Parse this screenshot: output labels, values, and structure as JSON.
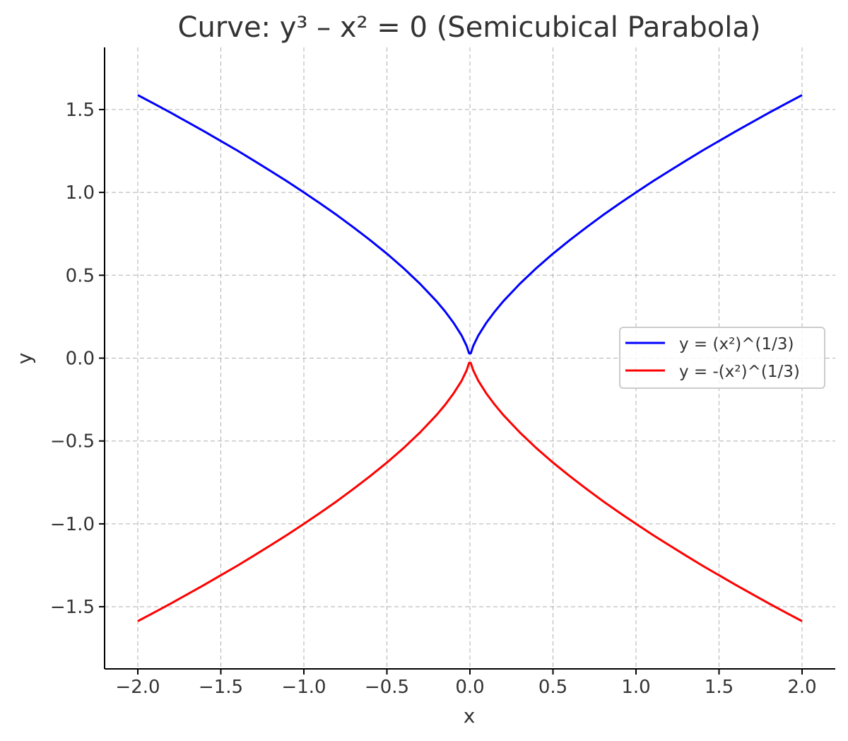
{
  "chart_data": {
    "type": "line",
    "title": "Curve: y³ – x² = 0 (Semicubical Parabola)",
    "xlabel": "x",
    "ylabel": "y",
    "xlim": [
      -2.2,
      2.2
    ],
    "ylim": [
      -1.875,
      1.875
    ],
    "xticks": [
      -2.0,
      -1.5,
      -1.0,
      -0.5,
      0.0,
      0.5,
      1.0,
      1.5,
      2.0
    ],
    "xtick_labels": [
      "−2.0",
      "−1.5",
      "−1.0",
      "−0.5",
      "0.0",
      "0.5",
      "1.0",
      "1.5",
      "2.0"
    ],
    "yticks": [
      -1.5,
      -1.0,
      -0.5,
      0.0,
      0.5,
      1.0,
      1.5
    ],
    "ytick_labels": [
      "−1.5",
      "−1.0",
      "−0.5",
      "0.0",
      "0.5",
      "1.0",
      "1.5"
    ],
    "grid": true,
    "legend_placement": "center-right",
    "x": [
      -2.0,
      -1.9,
      -1.8,
      -1.7,
      -1.6,
      -1.5,
      -1.4,
      -1.3,
      -1.2,
      -1.1,
      -1.0,
      -0.9,
      -0.8,
      -0.7,
      -0.6,
      -0.5,
      -0.4,
      -0.3,
      -0.2,
      -0.15,
      -0.1,
      -0.05,
      -0.02,
      -0.005,
      0.005,
      0.02,
      0.05,
      0.1,
      0.15,
      0.2,
      0.3,
      0.4,
      0.5,
      0.6,
      0.7,
      0.8,
      0.9,
      1.0,
      1.1,
      1.2,
      1.3,
      1.4,
      1.5,
      1.6,
      1.7,
      1.8,
      1.9,
      2.0
    ],
    "series": [
      {
        "name": "y = (x²)^(1/3)",
        "color": "#0000ff",
        "values": [
          1.587,
          1.534,
          1.48,
          1.424,
          1.368,
          1.31,
          1.252,
          1.191,
          1.129,
          1.066,
          1.0,
          0.932,
          0.862,
          0.788,
          0.711,
          0.63,
          0.543,
          0.448,
          0.342,
          0.282,
          0.215,
          0.136,
          0.074,
          0.029,
          0.029,
          0.074,
          0.136,
          0.215,
          0.282,
          0.342,
          0.448,
          0.543,
          0.63,
          0.711,
          0.788,
          0.862,
          0.932,
          1.0,
          1.066,
          1.129,
          1.191,
          1.252,
          1.31,
          1.368,
          1.424,
          1.48,
          1.534,
          1.587
        ]
      },
      {
        "name": "y = -(x²)^(1/3)",
        "color": "#ff0000",
        "values": [
          -1.587,
          -1.534,
          -1.48,
          -1.424,
          -1.368,
          -1.31,
          -1.252,
          -1.191,
          -1.129,
          -1.066,
          -1.0,
          -0.932,
          -0.862,
          -0.788,
          -0.711,
          -0.63,
          -0.543,
          -0.448,
          -0.342,
          -0.282,
          -0.215,
          -0.136,
          -0.074,
          -0.029,
          -0.029,
          -0.074,
          -0.136,
          -0.215,
          -0.282,
          -0.342,
          -0.448,
          -0.543,
          -0.63,
          -0.711,
          -0.788,
          -0.862,
          -0.932,
          -1.0,
          -1.066,
          -1.129,
          -1.191,
          -1.252,
          -1.31,
          -1.368,
          -1.424,
          -1.48,
          -1.534,
          -1.587
        ]
      }
    ]
  }
}
